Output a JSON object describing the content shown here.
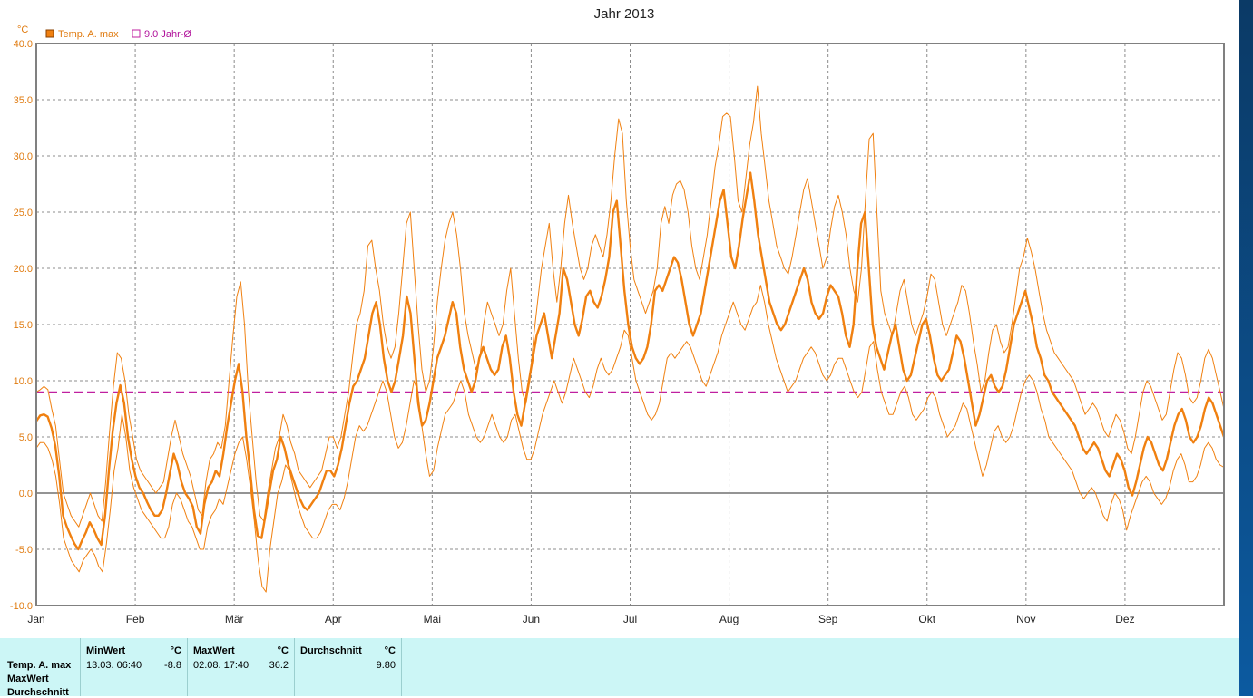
{
  "chart_data": {
    "type": "line",
    "title": "Jahr 2013",
    "yunit": "°C",
    "ylim": [
      -10,
      40
    ],
    "yticks": [
      "40.0",
      "35.0",
      "30.0",
      "25.0",
      "20.0",
      "15.0",
      "10.0",
      "5.0",
      "0.0",
      "-5.0",
      "-10.0"
    ],
    "months": [
      "Jan",
      "Feb",
      "Mär",
      "Apr",
      "Mai",
      "Jun",
      "Jul",
      "Aug",
      "Sep",
      "Okt",
      "Nov",
      "Dez"
    ],
    "grid": true,
    "legend_position": "top-left",
    "legend": [
      {
        "label": "Temp. A. max",
        "color": "#f08010"
      },
      {
        "label": "9.0 Jahr-Ø",
        "color": "#c020a0"
      }
    ],
    "reference_line": {
      "value": 9.0,
      "color": "#c020a0"
    },
    "series": [
      {
        "name": "Temp. A. max",
        "color": "#f08010",
        "values": [
          6.4,
          6.9,
          7.0,
          6.8,
          5.8,
          4.2,
          1.5,
          -2.0,
          -3.0,
          -3.8,
          -4.5,
          -5.0,
          -4.2,
          -3.5,
          -2.6,
          -3.2,
          -4.0,
          -4.6,
          -2.0,
          2.0,
          5.5,
          8.0,
          9.6,
          8.0,
          5.0,
          3.0,
          1.5,
          0.5,
          0.0,
          -0.8,
          -1.5,
          -2.0,
          -2.0,
          -1.5,
          0.0,
          1.8,
          3.5,
          2.5,
          1.0,
          0.0,
          -0.5,
          -1.2,
          -3.0,
          -3.6,
          -1.0,
          0.5,
          1.0,
          2.0,
          1.5,
          3.5,
          6.0,
          8.0,
          10.0,
          11.5,
          9.0,
          5.0,
          2.0,
          -1.5,
          -3.8,
          -4.0,
          -2.0,
          0.0,
          2.0,
          3.0,
          5.0,
          4.0,
          2.5,
          1.5,
          0.5,
          -0.5,
          -1.2,
          -1.5,
          -1.0,
          -0.5,
          0.0,
          1.0,
          2.0,
          2.0,
          1.5,
          2.5,
          4.0,
          6.0,
          8.0,
          9.5,
          10.0,
          11.0,
          12.0,
          14.0,
          16.0,
          17.0,
          15.0,
          12.0,
          10.0,
          9.0,
          10.0,
          12.0,
          14.0,
          17.5,
          16.0,
          12.0,
          8.0,
          6.0,
          6.5,
          8.0,
          10.0,
          12.0,
          13.0,
          14.0,
          15.5,
          17.0,
          16.0,
          13.0,
          11.0,
          10.0,
          9.0,
          10.0,
          12.0,
          13.0,
          12.0,
          11.0,
          10.5,
          11.0,
          13.0,
          14.0,
          12.0,
          9.0,
          7.0,
          6.0,
          8.0,
          10.0,
          12.0,
          14.0,
          15.0,
          16.0,
          14.0,
          12.0,
          14.0,
          16.0,
          20.0,
          19.0,
          17.0,
          15.0,
          14.0,
          15.5,
          17.5,
          18.0,
          17.0,
          16.5,
          17.5,
          19.0,
          21.0,
          25.0,
          26.0,
          22.0,
          18.0,
          15.0,
          13.0,
          12.0,
          11.5,
          12.0,
          13.0,
          15.0,
          18.0,
          18.5,
          18.0,
          19.0,
          20.0,
          21.0,
          20.5,
          19.0,
          17.0,
          15.0,
          14.0,
          15.0,
          16.0,
          18.0,
          20.0,
          22.0,
          24.0,
          26.0,
          27.0,
          24.0,
          21.0,
          20.0,
          22.0,
          24.5,
          26.5,
          28.5,
          26.0,
          23.0,
          21.0,
          19.0,
          17.0,
          16.0,
          15.0,
          14.5,
          15.0,
          16.0,
          17.0,
          18.0,
          19.0,
          20.0,
          19.0,
          17.0,
          16.0,
          15.5,
          16.0,
          17.5,
          18.5,
          18.0,
          17.5,
          16.0,
          14.0,
          13.0,
          15.0,
          20.0,
          24.0,
          25.0,
          20.0,
          15.0,
          13.0,
          12.0,
          11.0,
          12.5,
          14.0,
          15.0,
          13.0,
          11.0,
          10.0,
          10.5,
          12.0,
          13.5,
          15.0,
          15.5,
          14.0,
          12.0,
          10.5,
          10.0,
          10.5,
          11.0,
          12.5,
          14.0,
          13.5,
          12.0,
          10.0,
          8.0,
          6.0,
          7.0,
          8.5,
          10.0,
          10.5,
          9.5,
          9.0,
          9.5,
          11.0,
          13.0,
          15.0,
          16.0,
          17.0,
          18.0,
          16.5,
          15.0,
          13.0,
          12.0,
          10.5,
          10.0,
          9.0,
          8.5,
          8.0,
          7.5,
          7.0,
          6.5,
          6.0,
          5.0,
          4.0,
          3.5,
          4.0,
          4.5,
          4.0,
          3.0,
          2.0,
          1.5,
          2.5,
          3.5,
          3.0,
          2.0,
          0.5,
          -0.2,
          1.0,
          2.5,
          4.0,
          5.0,
          4.5,
          3.5,
          2.5,
          2.0,
          3.0,
          4.5,
          6.0,
          7.0,
          7.5,
          6.5,
          5.0,
          4.5,
          5.0,
          6.0,
          7.5,
          8.5,
          8.0,
          7.0,
          6.0,
          5.0
        ]
      },
      {
        "name": "",
        "color": "#f08010",
        "values": [
          9.0,
          9.2,
          9.5,
          9.2,
          7.5,
          6.0,
          3.0,
          0.0,
          -1.0,
          -2.0,
          -2.5,
          -3.0,
          -2.0,
          -1.0,
          0.0,
          -1.0,
          -2.0,
          -2.5,
          1.0,
          5.5,
          9.5,
          12.5,
          12.0,
          10.0,
          7.0,
          5.0,
          3.0,
          2.0,
          1.5,
          1.0,
          0.5,
          0.0,
          0.5,
          1.0,
          3.0,
          5.0,
          6.5,
          5.0,
          3.5,
          2.5,
          1.5,
          0.0,
          -1.5,
          -2.0,
          1.0,
          3.0,
          3.5,
          4.5,
          4.0,
          6.0,
          10.0,
          14.0,
          17.5,
          18.8,
          15.0,
          9.0,
          5.0,
          1.0,
          -2.0,
          -2.5,
          0.0,
          2.0,
          4.0,
          5.0,
          7.0,
          6.0,
          4.5,
          3.5,
          2.0,
          1.5,
          1.0,
          0.5,
          1.0,
          1.5,
          2.0,
          3.5,
          5.0,
          5.0,
          4.0,
          5.0,
          7.0,
          9.0,
          12.0,
          15.0,
          16.0,
          18.0,
          22.0,
          22.5,
          20.0,
          18.0,
          15.0,
          13.0,
          12.0,
          13.0,
          16.0,
          20.0,
          24.0,
          25.0,
          20.0,
          15.0,
          11.0,
          9.0,
          10.0,
          13.0,
          17.0,
          20.0,
          22.5,
          24.0,
          25.0,
          23.0,
          20.0,
          16.0,
          14.0,
          12.5,
          11.0,
          12.0,
          15.0,
          17.0,
          16.0,
          15.0,
          14.0,
          15.0,
          18.0,
          20.0,
          16.0,
          12.0,
          9.0,
          8.0,
          10.0,
          14.0,
          17.0,
          20.0,
          22.0,
          24.0,
          20.0,
          17.0,
          20.0,
          24.0,
          26.5,
          24.0,
          22.0,
          20.0,
          19.0,
          20.0,
          22.0,
          23.0,
          22.0,
          21.0,
          23.0,
          26.0,
          30.0,
          33.3,
          32.0,
          26.0,
          22.0,
          19.0,
          18.0,
          17.0,
          16.0,
          17.0,
          18.0,
          20.0,
          24.0,
          25.5,
          24.0,
          26.5,
          27.5,
          27.8,
          27.0,
          25.0,
          22.0,
          20.0,
          19.0,
          21.0,
          23.0,
          26.0,
          29.0,
          31.0,
          33.5,
          33.8,
          33.5,
          30.0,
          26.0,
          25.0,
          28.0,
          31.0,
          33.0,
          36.2,
          32.0,
          29.0,
          26.0,
          24.0,
          22.0,
          21.0,
          20.0,
          19.5,
          21.0,
          23.0,
          25.0,
          27.0,
          28.0,
          26.0,
          24.0,
          22.0,
          20.0,
          21.0,
          23.5,
          25.5,
          26.5,
          25.0,
          23.0,
          20.0,
          18.0,
          17.0,
          20.0,
          26.0,
          31.5,
          32.0,
          25.0,
          18.0,
          16.0,
          15.0,
          14.0,
          16.0,
          18.0,
          19.0,
          17.0,
          15.0,
          14.0,
          15.0,
          16.0,
          17.5,
          19.5,
          19.0,
          17.0,
          15.0,
          14.0,
          15.0,
          16.0,
          17.0,
          18.5,
          18.0,
          16.0,
          13.5,
          11.5,
          9.0,
          10.0,
          12.5,
          14.5,
          15.0,
          13.5,
          12.5,
          13.0,
          15.0,
          17.5,
          20.0,
          21.0,
          22.7,
          21.5,
          20.0,
          18.0,
          16.0,
          14.5,
          13.5,
          12.5,
          12.0,
          11.5,
          11.0,
          10.5,
          10.0,
          9.0,
          8.0,
          7.0,
          7.5,
          8.0,
          7.5,
          6.5,
          5.5,
          5.0,
          6.0,
          7.0,
          6.5,
          5.5,
          4.0,
          3.5,
          5.0,
          7.0,
          9.0,
          10.0,
          9.5,
          8.5,
          7.5,
          6.5,
          7.0,
          9.0,
          11.0,
          12.5,
          12.0,
          10.5,
          8.5,
          8.0,
          8.5,
          10.0,
          12.0,
          12.8,
          12.0,
          10.5,
          9.0,
          7.5
        ]
      },
      {
        "name": "",
        "color": "#f08010",
        "values": [
          4.0,
          4.5,
          4.5,
          4.0,
          3.0,
          1.5,
          -1.0,
          -4.0,
          -5.0,
          -6.0,
          -6.5,
          -7.0,
          -6.0,
          -5.5,
          -5.0,
          -5.5,
          -6.5,
          -7.0,
          -4.5,
          -1.5,
          2.0,
          4.0,
          7.0,
          5.0,
          2.0,
          0.5,
          -0.5,
          -1.5,
          -2.0,
          -2.5,
          -3.0,
          -3.5,
          -4.0,
          -4.0,
          -3.0,
          -1.0,
          0.0,
          -0.5,
          -1.5,
          -2.5,
          -3.0,
          -4.0,
          -5.0,
          -5.0,
          -3.0,
          -2.0,
          -1.5,
          -0.5,
          -1.0,
          0.5,
          2.0,
          3.5,
          4.5,
          5.0,
          3.0,
          0.5,
          -2.5,
          -6.0,
          -8.3,
          -8.8,
          -5.0,
          -2.5,
          0.0,
          1.0,
          2.5,
          2.0,
          0.5,
          -1.0,
          -2.0,
          -3.0,
          -3.5,
          -4.0,
          -4.0,
          -3.5,
          -2.5,
          -1.5,
          -1.0,
          -1.0,
          -1.5,
          -0.5,
          1.0,
          3.0,
          5.0,
          6.0,
          5.5,
          6.0,
          7.0,
          8.0,
          9.0,
          10.0,
          9.0,
          7.0,
          5.0,
          4.0,
          4.5,
          6.0,
          8.0,
          10.0,
          9.0,
          6.0,
          3.5,
          1.5,
          2.0,
          4.0,
          5.5,
          7.0,
          7.5,
          8.0,
          9.0,
          10.0,
          9.0,
          7.0,
          6.0,
          5.0,
          4.5,
          5.0,
          6.0,
          7.0,
          6.0,
          5.0,
          4.5,
          5.0,
          6.5,
          7.0,
          5.5,
          4.0,
          3.0,
          3.0,
          4.0,
          5.5,
          7.0,
          8.0,
          9.0,
          10.0,
          9.0,
          8.0,
          9.0,
          10.5,
          12.0,
          11.0,
          10.0,
          9.0,
          8.5,
          9.5,
          11.0,
          12.0,
          11.0,
          10.5,
          11.0,
          12.0,
          13.0,
          14.5,
          14.0,
          12.0,
          10.0,
          9.0,
          8.0,
          7.0,
          6.5,
          7.0,
          8.0,
          10.0,
          12.0,
          12.5,
          12.0,
          12.5,
          13.0,
          13.5,
          13.0,
          12.0,
          11.0,
          10.0,
          9.5,
          10.5,
          11.5,
          12.5,
          14.0,
          15.0,
          16.0,
          17.0,
          16.0,
          15.0,
          14.5,
          15.5,
          16.5,
          17.0,
          18.5,
          17.0,
          15.0,
          13.5,
          12.0,
          11.0,
          10.0,
          9.0,
          9.5,
          10.0,
          11.0,
          12.0,
          12.5,
          13.0,
          12.5,
          11.5,
          10.5,
          10.0,
          10.5,
          11.5,
          12.0,
          12.0,
          11.0,
          10.0,
          9.0,
          8.5,
          9.0,
          11.0,
          13.0,
          13.5,
          11.0,
          9.0,
          8.0,
          7.0,
          7.0,
          8.0,
          9.0,
          9.5,
          8.5,
          7.0,
          6.5,
          7.0,
          7.5,
          8.5,
          9.0,
          8.5,
          7.0,
          6.0,
          5.0,
          5.5,
          6.0,
          7.0,
          8.0,
          7.5,
          6.0,
          4.5,
          3.0,
          1.5,
          2.5,
          4.0,
          5.5,
          6.0,
          5.0,
          4.5,
          5.0,
          6.0,
          7.5,
          9.0,
          10.0,
          10.5,
          10.0,
          9.0,
          7.5,
          6.5,
          5.0,
          4.5,
          4.0,
          3.5,
          3.0,
          2.5,
          2.0,
          1.0,
          0.0,
          -0.5,
          0.0,
          0.5,
          0.0,
          -1.0,
          -2.0,
          -2.5,
          -1.0,
          0.0,
          -0.5,
          -1.5,
          -3.3,
          -2.0,
          -1.0,
          0.0,
          1.0,
          1.5,
          1.0,
          0.0,
          -0.5,
          -1.0,
          -0.5,
          0.5,
          2.0,
          3.0,
          3.5,
          2.5,
          1.0,
          1.0,
          1.5,
          2.5,
          4.0,
          4.5,
          4.0,
          3.0,
          2.5,
          2.3
        ]
      }
    ]
  },
  "stats": {
    "rows": [
      "Temp. A. max",
      "MaxWert",
      "Durchschnitt"
    ],
    "min_header": "MinWert",
    "min_unit": "°C",
    "min_date": "13.03.  06:40",
    "min_value": "-8.8",
    "max_header": "MaxWert",
    "max_unit": "°C",
    "max_date": "02.08.  17:40",
    "max_value": "36.2",
    "avg_header": "Durchschnitt",
    "avg_unit": "°C",
    "avg_value": "9.80"
  }
}
